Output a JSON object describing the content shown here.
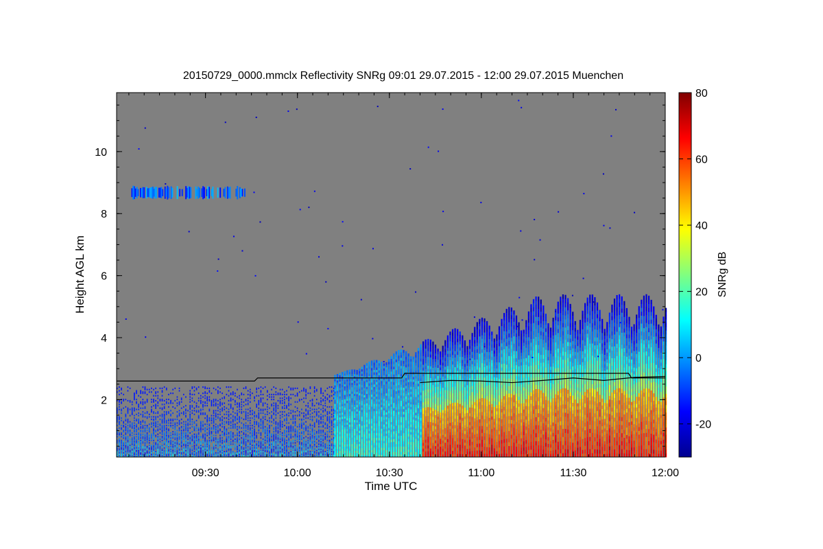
{
  "chart_data": {
    "type": "heatmap",
    "title": "20150729_0000.mmclx Reflectivity SNRg   09:01 29.07.2015 - 12:00 29.07.2015 Muenchen",
    "xlabel": "Time UTC",
    "ylabel": "Height AGL km",
    "x_range": [
      "09:01",
      "12:00"
    ],
    "y_range_km": [
      0.15,
      11.9
    ],
    "x_ticks": [
      "09:30",
      "10:00",
      "10:30",
      "11:00",
      "11:30",
      "12:00"
    ],
    "y_ticks": [
      2,
      4,
      6,
      8,
      10
    ],
    "colorbar": {
      "label": "SNRg dB",
      "range": [
        -30,
        80
      ],
      "ticks": [
        -20,
        0,
        20,
        40,
        60,
        80
      ],
      "colormap": [
        "#00008f",
        "#0000ff",
        "#0080ff",
        "#00ffff",
        "#80ff80",
        "#ffff00",
        "#ff8000",
        "#ff0000",
        "#800000"
      ]
    },
    "background_color": "#808080",
    "features": {
      "high_cloud_layer": {
        "start": "09:05",
        "end": "09:43",
        "height_km": [
          8.45,
          8.9
        ],
        "snr_db": [
          -15,
          5
        ]
      },
      "boundary_layer_noise": {
        "start": "09:01",
        "end": "10:12",
        "height_km": [
          0.15,
          2.4
        ],
        "snr_db": [
          -20,
          10
        ]
      },
      "convective_clouds": {
        "start": "10:12",
        "end": "12:00",
        "base_km": 0.15,
        "top_km": [
          2.8,
          5.4
        ],
        "snr_db": [
          0,
          70
        ]
      },
      "strong_echo_onset": "10:40"
    },
    "line_series": [
      {
        "points": [
          [
            "09:01",
            2.6
          ],
          [
            "09:46",
            2.6
          ],
          [
            "09:47",
            2.7
          ],
          [
            "10:34",
            2.7
          ],
          [
            "10:35",
            2.85
          ],
          [
            "11:48",
            2.85
          ],
          [
            "11:49",
            2.7
          ],
          [
            "12:00",
            2.7
          ]
        ]
      },
      {
        "points": [
          [
            "10:40",
            2.55
          ],
          [
            "10:50",
            2.62
          ],
          [
            "11:00",
            2.6
          ],
          [
            "11:10",
            2.55
          ],
          [
            "11:20",
            2.62
          ],
          [
            "11:30",
            2.7
          ],
          [
            "11:40",
            2.62
          ],
          [
            "11:50",
            2.72
          ],
          [
            "12:00",
            2.75
          ]
        ]
      }
    ]
  }
}
